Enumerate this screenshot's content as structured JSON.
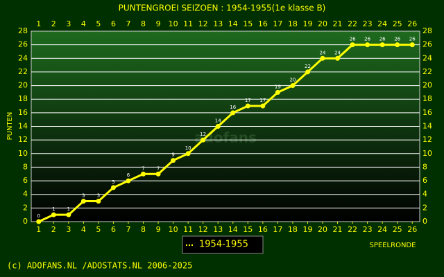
{
  "chart_data": {
    "type": "line",
    "title": "PUNTENGROEI SEIZOEN : 1954-1955(1e klasse B)",
    "y_label": "PUNTEN",
    "x_label": "SPEELRONDE",
    "watermark": "adofans",
    "footer": "(c) ADOFANS.NL /ADOSTATS.NL 2006-2025",
    "x": [
      1,
      2,
      3,
      4,
      5,
      6,
      7,
      8,
      9,
      10,
      11,
      12,
      13,
      14,
      15,
      16,
      17,
      18,
      19,
      20,
      21,
      22,
      23,
      24,
      25,
      26
    ],
    "series": [
      {
        "name": "1954-1955",
        "color": "#ffff00",
        "values": [
          0,
          1,
          1,
          3,
          3,
          5,
          6,
          7,
          7,
          9,
          10,
          12,
          14,
          16,
          17,
          17,
          19,
          20,
          22,
          24,
          24,
          26,
          26,
          26,
          26,
          26
        ]
      }
    ],
    "xlim": [
      0.5,
      26.5
    ],
    "xticks": [
      1,
      2,
      3,
      4,
      5,
      6,
      7,
      8,
      9,
      10,
      11,
      12,
      13,
      14,
      15,
      16,
      17,
      18,
      19,
      20,
      21,
      22,
      23,
      24,
      25,
      26
    ],
    "ylim": [
      0,
      28
    ],
    "yticks": [
      0,
      2,
      4,
      6,
      8,
      10,
      12,
      14,
      16,
      18,
      20,
      22,
      24,
      26,
      28
    ],
    "grid": true
  }
}
